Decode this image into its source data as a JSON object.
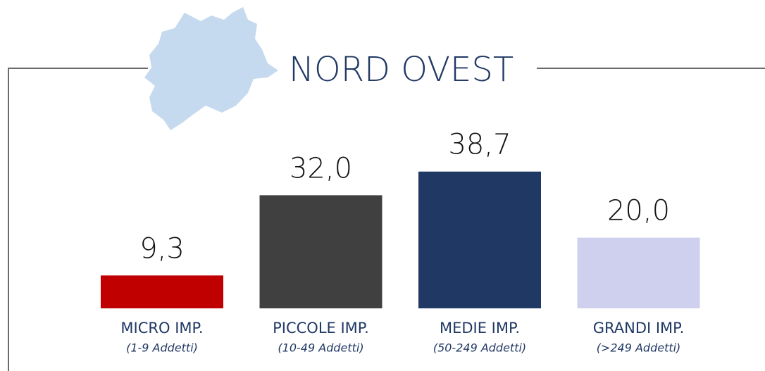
{
  "chart_data": {
    "type": "bar",
    "title": "NORD OVEST",
    "categories": [
      "MICRO IMP.",
      "PICCOLE IMP.",
      "MEDIE IMP.",
      "GRANDI IMP."
    ],
    "category_notes": [
      "(1-9 Addetti)",
      "(10-49 Addetti)",
      "(50-249 Addetti)",
      "(>249 Addetti)"
    ],
    "values": [
      9.3,
      32.0,
      38.7,
      20.0
    ],
    "value_labels": [
      "9,3",
      "32,0",
      "38,7",
      "20,0"
    ],
    "colors": [
      "#c00000",
      "#404040",
      "#203864",
      "#cfd0ee"
    ]
  }
}
